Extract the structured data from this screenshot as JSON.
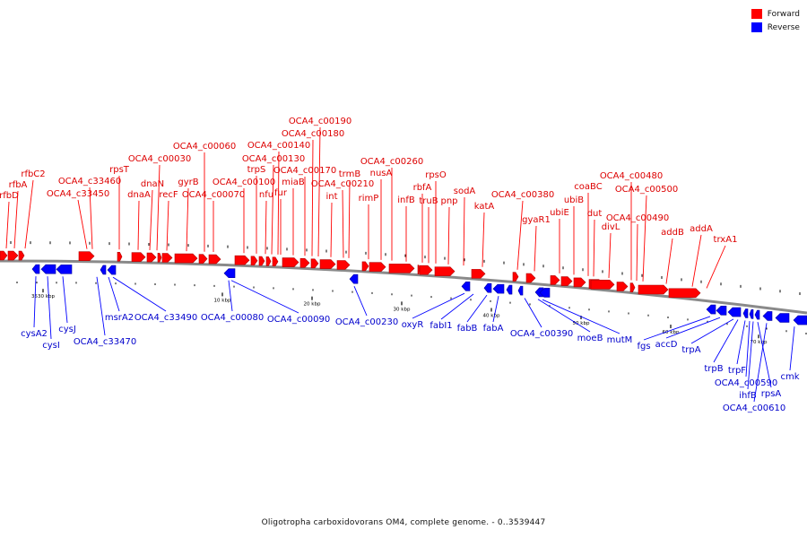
{
  "legend": [
    {
      "label": "Forward",
      "color": "#ff0000"
    },
    {
      "label": "Reverse",
      "color": "#0000ff"
    }
  ],
  "caption": "Oligotropha carboxidovorans OM4, complete genome. - 0..3539447",
  "scale_labels": [
    "3530 kbp",
    "10 kbp",
    "20 kbp",
    "30 kbp",
    "40 kbp",
    "50 kbp",
    "60 kbp",
    "70 kbp"
  ],
  "forward_genes": [
    "rfbD",
    "rfbA",
    "rfbC2",
    "OCA4_c33450",
    "OCA4_c33460",
    "rpsT",
    "dnaA",
    "dnaN",
    "OCA4_c00030",
    "recF",
    "gyrB",
    "OCA4_c00060",
    "OCA4_c00070",
    "OCA4_c00100",
    "trpS",
    "nfu",
    "fur",
    "OCA4_c00130",
    "OCA4_c00140",
    "miaB",
    "OCA4_c00170",
    "OCA4_c00180",
    "OCA4_c00190",
    "int",
    "OCA4_c00210",
    "trmB",
    "rimP",
    "nusA",
    "OCA4_c00260",
    "infB",
    "rbfA",
    "truB",
    "rpsO",
    "pnp",
    "sodA",
    "katA",
    "OCA4_c00380",
    "gyaR1",
    "ubiE",
    "ubiB",
    "coaBC",
    "dut",
    "divL",
    "OCA4_c00490",
    "OCA4_c00480",
    "OCA4_c00500",
    "addB",
    "addA",
    "trxA1"
  ],
  "reverse_genes": [
    "cysA2",
    "cysI",
    "cysJ",
    "OCA4_c33470",
    "msrA2",
    "OCA4_c33490",
    "OCA4_c00080",
    "OCA4_c00090",
    "OCA4_c00230",
    "oxyR",
    "fabI1",
    "fabB",
    "fabA",
    "OCA4_c00390",
    "moeB",
    "mutM",
    "fgs",
    "accD",
    "trpA",
    "trpB",
    "trpF",
    "OCA4_c00590",
    "ihfB",
    "rpsA",
    "OCA4_c00610",
    "cmk"
  ]
}
